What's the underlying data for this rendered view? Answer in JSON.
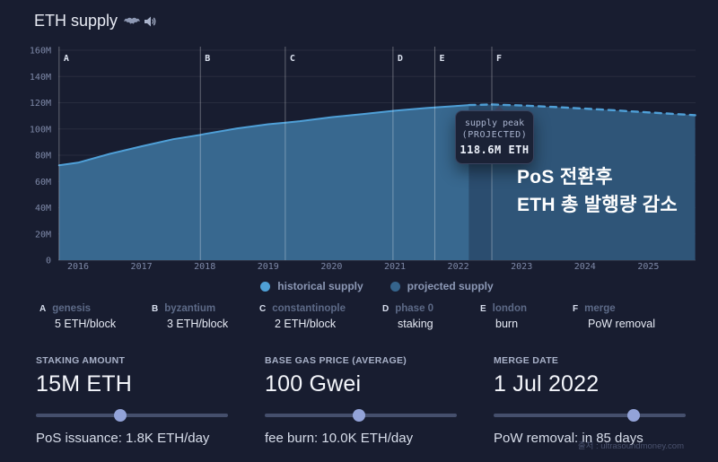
{
  "header": {
    "title": "ETH supply"
  },
  "chart_data": {
    "type": "area",
    "title": "ETH supply",
    "xlabel": "",
    "ylabel": "",
    "xlim": [
      2015.7,
      2025.74
    ],
    "ylim": [
      0,
      160
    ],
    "grid": true,
    "legend_position": "bottom-center",
    "x_ticks": [
      {
        "v": 2016,
        "label": "2016"
      },
      {
        "v": 2017,
        "label": "2017"
      },
      {
        "v": 2018,
        "label": "2018"
      },
      {
        "v": 2019,
        "label": "2019"
      },
      {
        "v": 2020,
        "label": "2020"
      },
      {
        "v": 2021,
        "label": "2021"
      },
      {
        "v": 2022,
        "label": "2022"
      },
      {
        "v": 2023,
        "label": "2023"
      },
      {
        "v": 2024,
        "label": "2024"
      },
      {
        "v": 2025,
        "label": "2025"
      }
    ],
    "y_ticks": [
      {
        "v": 160,
        "label": "160M"
      },
      {
        "v": 140,
        "label": "140M"
      },
      {
        "v": 120,
        "label": "120M"
      },
      {
        "v": 100,
        "label": "100M"
      },
      {
        "v": 80,
        "label": "80M"
      },
      {
        "v": 60,
        "label": "60M"
      },
      {
        "v": 40,
        "label": "40M"
      },
      {
        "v": 20,
        "label": "20M"
      },
      {
        "v": 0,
        "label": "0"
      }
    ],
    "series": [
      {
        "name": "historical supply",
        "unit": "M ETH",
        "color": "#4fa0d8",
        "fill": "#38688f",
        "dashed": false,
        "points": [
          [
            2015.7,
            72.3
          ],
          [
            2016.0,
            74.3
          ],
          [
            2016.5,
            81.0
          ],
          [
            2017.0,
            86.8
          ],
          [
            2017.5,
            92.2
          ],
          [
            2017.93,
            95.5
          ],
          [
            2018.0,
            96.2
          ],
          [
            2018.5,
            100.3
          ],
          [
            2019.0,
            103.6
          ],
          [
            2019.27,
            104.8
          ],
          [
            2019.5,
            105.9
          ],
          [
            2020.0,
            109.0
          ],
          [
            2020.5,
            111.4
          ],
          [
            2021.0,
            113.9
          ],
          [
            2021.5,
            116.0
          ],
          [
            2021.63,
            116.4
          ],
          [
            2022.0,
            117.6
          ],
          [
            2022.17,
            118.25
          ]
        ]
      },
      {
        "name": "projected supply (pre-merge)",
        "unit": "M ETH",
        "color": "#4fa0d8",
        "fill": "#2b4d6f",
        "dashed": true,
        "points": [
          [
            2022.17,
            118.25
          ],
          [
            2022.35,
            118.45
          ],
          [
            2022.53,
            118.6
          ]
        ]
      },
      {
        "name": "projected supply",
        "unit": "M ETH",
        "color": "#4fa0d8",
        "fill": "#2f5578",
        "dashed": true,
        "points": [
          [
            2022.53,
            118.6
          ],
          [
            2023.0,
            117.9
          ],
          [
            2023.5,
            116.8
          ],
          [
            2024.0,
            115.5
          ],
          [
            2024.5,
            114.1
          ],
          [
            2025.0,
            112.6
          ],
          [
            2025.74,
            110.5
          ]
        ]
      }
    ],
    "events": [
      {
        "key": "A",
        "name": "genesis",
        "detail": "5 ETH/block",
        "year": 2015.7
      },
      {
        "key": "B",
        "name": "byzantium",
        "detail": "3 ETH/block",
        "year": 2017.93
      },
      {
        "key": "C",
        "name": "constantinople",
        "detail": "2 ETH/block",
        "year": 2019.27
      },
      {
        "key": "D",
        "name": "phase 0",
        "detail": "staking",
        "year": 2020.97
      },
      {
        "key": "E",
        "name": "london",
        "detail": "burn",
        "year": 2021.63
      },
      {
        "key": "F",
        "name": "merge",
        "detail": "PoW removal",
        "year": 2022.53
      }
    ],
    "tooltip": {
      "line1": "supply peak",
      "line2": "(PROJECTED)",
      "value": "118.6M ETH"
    },
    "annotation": {
      "line1": "PoS 전환후",
      "line2": "ETH 총 발행량 감소"
    },
    "legend": [
      {
        "label": "historical supply",
        "color": "#4fa0d6"
      },
      {
        "label": "projected supply",
        "color": "#35648c"
      }
    ]
  },
  "controls": [
    {
      "label": "STAKING AMOUNT",
      "value": "15M ETH",
      "slider_pos": 44,
      "sub": "PoS issuance: 1.8K ETH/day"
    },
    {
      "label": "BASE GAS PRICE (AVERAGE)",
      "value": "100 Gwei",
      "slider_pos": 49,
      "sub": "fee burn: 10.0K ETH/day"
    },
    {
      "label": "MERGE DATE",
      "value": "1 Jul 2022",
      "slider_pos": 73,
      "sub": "PoW removal: in 85 days"
    }
  ],
  "footer": {
    "source": "출처 : ultrasoundmoney.com"
  },
  "colors": {
    "background": "#181d30",
    "accent_line": "#4fa0d8",
    "historical_fill": "#38688f",
    "projected_fill": "#2f5578",
    "slider_thumb": "#93a3d8",
    "slider_track": "#454f6c"
  }
}
